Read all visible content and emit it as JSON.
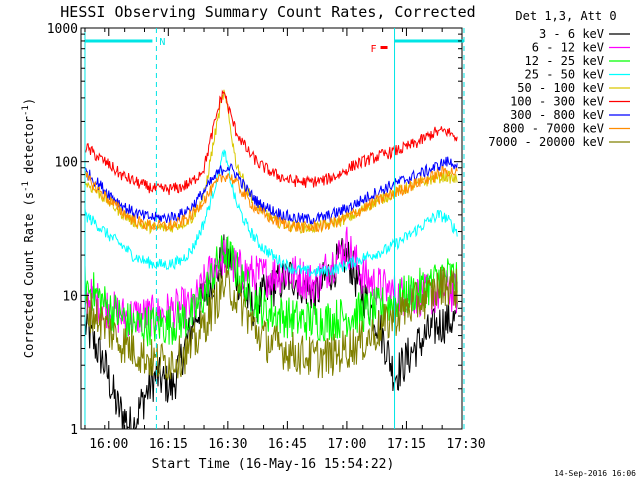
{
  "chart_data": {
    "type": "line",
    "title": "HESSI Observing Summary Count Rates, Corrected",
    "xlabel": "Start Time (16-May-16 15:54:22)",
    "ylabel_main": "Corrected Count Rate (s",
    "ylabel_sup1": "-1",
    "ylabel_mid": " detector",
    "ylabel_sup2": "-1",
    "ylabel_end": ")",
    "xlim_minutes": [
      -1,
      95
    ],
    "xticks": [
      {
        "label": "16:00",
        "minute": 6
      },
      {
        "label": "16:15",
        "minute": 21
      },
      {
        "label": "16:30",
        "minute": 36
      },
      {
        "label": "16:45",
        "minute": 51
      },
      {
        "label": "17:00",
        "minute": 66
      },
      {
        "label": "17:15",
        "minute": 81
      },
      {
        "label": "17:30",
        "minute": 96
      }
    ],
    "ylim": [
      1,
      1000
    ],
    "yscale": "log",
    "yticks": [
      {
        "label": "1",
        "value": 1
      },
      {
        "label": "10",
        "value": 10
      },
      {
        "label": "100",
        "value": 100
      },
      {
        "label": "1000",
        "value": 1000
      }
    ],
    "legend_title": "Det 1,3, Att 0",
    "legend_placement": "right, outside plot",
    "markers": {
      "night_label": "N",
      "flare_label": "F",
      "night_start": 0,
      "night_end": 18,
      "saa_start": 78,
      "saa_end": 95.5,
      "bar_color": "#00e5e5",
      "flare_color": "#ff0000"
    },
    "footer": "14-Sep-2016 16:06",
    "series": [
      {
        "name": "3 - 6 keV",
        "color": "#000000",
        "points": [
          [
            0,
            6
          ],
          [
            3,
            4
          ],
          [
            5,
            3
          ],
          [
            8,
            1.5
          ],
          [
            12,
            1
          ],
          [
            14,
            1.5
          ],
          [
            16,
            2
          ],
          [
            18,
            2.5
          ],
          [
            22,
            2
          ],
          [
            25,
            4
          ],
          [
            28,
            7
          ],
          [
            30,
            10
          ],
          [
            33,
            14
          ],
          [
            35,
            20
          ],
          [
            37,
            18
          ],
          [
            39,
            12
          ],
          [
            42,
            8
          ],
          [
            45,
            10
          ],
          [
            48,
            12
          ],
          [
            52,
            14
          ],
          [
            55,
            12
          ],
          [
            58,
            10
          ],
          [
            61,
            14
          ],
          [
            64,
            18
          ],
          [
            66,
            20
          ],
          [
            68,
            14
          ],
          [
            70,
            10
          ],
          [
            72,
            8
          ],
          [
            74,
            6
          ],
          [
            76,
            4
          ],
          [
            78,
            2.5
          ],
          [
            80,
            3
          ],
          [
            83,
            4
          ],
          [
            86,
            5
          ],
          [
            89,
            6
          ],
          [
            92,
            6.5
          ],
          [
            94,
            6.5
          ]
        ]
      },
      {
        "name": "6 - 12 keV",
        "color": "#ff00ff",
        "points": [
          [
            0,
            10
          ],
          [
            3,
            9
          ],
          [
            6,
            8
          ],
          [
            9,
            7
          ],
          [
            12,
            7
          ],
          [
            15,
            7
          ],
          [
            18,
            7
          ],
          [
            21,
            7.5
          ],
          [
            24,
            8
          ],
          [
            27,
            8
          ],
          [
            30,
            12
          ],
          [
            33,
            18
          ],
          [
            35,
            20
          ],
          [
            37,
            17
          ],
          [
            40,
            15
          ],
          [
            43,
            14
          ],
          [
            46,
            14
          ],
          [
            50,
            15
          ],
          [
            54,
            14
          ],
          [
            58,
            12
          ],
          [
            61,
            16
          ],
          [
            64,
            20
          ],
          [
            66,
            24
          ],
          [
            68,
            18
          ],
          [
            70,
            14
          ],
          [
            73,
            12
          ],
          [
            76,
            11
          ],
          [
            79,
            10
          ],
          [
            82,
            10
          ],
          [
            85,
            10
          ],
          [
            88,
            10
          ],
          [
            91,
            11
          ],
          [
            94,
            10
          ]
        ]
      },
      {
        "name": "12 - 25 keV",
        "color": "#00ff00",
        "points": [
          [
            0,
            12
          ],
          [
            3,
            10
          ],
          [
            6,
            8
          ],
          [
            9,
            7
          ],
          [
            12,
            6
          ],
          [
            15,
            6
          ],
          [
            18,
            6
          ],
          [
            21,
            6
          ],
          [
            24,
            6.5
          ],
          [
            27,
            7
          ],
          [
            30,
            10
          ],
          [
            33,
            16
          ],
          [
            35,
            22
          ],
          [
            37,
            18
          ],
          [
            40,
            12
          ],
          [
            43,
            9
          ],
          [
            46,
            7.5
          ],
          [
            50,
            7
          ],
          [
            54,
            6.5
          ],
          [
            58,
            6.5
          ],
          [
            62,
            6.5
          ],
          [
            66,
            7
          ],
          [
            70,
            7.5
          ],
          [
            74,
            8
          ],
          [
            78,
            9
          ],
          [
            81,
            10
          ],
          [
            84,
            11
          ],
          [
            87,
            12
          ],
          [
            90,
            14
          ],
          [
            92,
            14
          ],
          [
            94,
            13
          ]
        ]
      },
      {
        "name": "25 - 50 keV",
        "color": "#00ffff",
        "points": [
          [
            0,
            40
          ],
          [
            3,
            34
          ],
          [
            6,
            28
          ],
          [
            9,
            24
          ],
          [
            12,
            20
          ],
          [
            15,
            18
          ],
          [
            18,
            17
          ],
          [
            21,
            17
          ],
          [
            24,
            18
          ],
          [
            27,
            22
          ],
          [
            30,
            35
          ],
          [
            32,
            55
          ],
          [
            34,
            90
          ],
          [
            35,
            120
          ],
          [
            36,
            90
          ],
          [
            38,
            50
          ],
          [
            41,
            32
          ],
          [
            44,
            24
          ],
          [
            48,
            19
          ],
          [
            52,
            16
          ],
          [
            56,
            15
          ],
          [
            60,
            15
          ],
          [
            64,
            16
          ],
          [
            68,
            18
          ],
          [
            72,
            20
          ],
          [
            76,
            22
          ],
          [
            80,
            26
          ],
          [
            83,
            30
          ],
          [
            86,
            35
          ],
          [
            89,
            40
          ],
          [
            91,
            38
          ],
          [
            93,
            32
          ],
          [
            94,
            30
          ]
        ]
      },
      {
        "name": "50 - 100 keV",
        "color": "#d9c800",
        "points": [
          [
            0,
            70
          ],
          [
            3,
            60
          ],
          [
            6,
            50
          ],
          [
            9,
            42
          ],
          [
            12,
            36
          ],
          [
            15,
            33
          ],
          [
            18,
            32
          ],
          [
            21,
            32
          ],
          [
            24,
            34
          ],
          [
            27,
            38
          ],
          [
            30,
            55
          ],
          [
            32,
            120
          ],
          [
            34,
            250
          ],
          [
            35,
            330
          ],
          [
            36,
            240
          ],
          [
            38,
            100
          ],
          [
            41,
            60
          ],
          [
            44,
            45
          ],
          [
            48,
            36
          ],
          [
            52,
            33
          ],
          [
            56,
            32
          ],
          [
            60,
            33
          ],
          [
            64,
            36
          ],
          [
            68,
            40
          ],
          [
            72,
            48
          ],
          [
            76,
            55
          ],
          [
            80,
            62
          ],
          [
            84,
            68
          ],
          [
            88,
            75
          ],
          [
            91,
            78
          ],
          [
            94,
            72
          ]
        ]
      },
      {
        "name": "100 - 300 keV",
        "color": "#ff0000",
        "points": [
          [
            0,
            130
          ],
          [
            3,
            110
          ],
          [
            6,
            95
          ],
          [
            9,
            80
          ],
          [
            12,
            72
          ],
          [
            15,
            66
          ],
          [
            18,
            62
          ],
          [
            21,
            62
          ],
          [
            24,
            64
          ],
          [
            27,
            70
          ],
          [
            30,
            90
          ],
          [
            32,
            160
          ],
          [
            34,
            280
          ],
          [
            35,
            340
          ],
          [
            36,
            260
          ],
          [
            38,
            170
          ],
          [
            41,
            120
          ],
          [
            44,
            95
          ],
          [
            48,
            80
          ],
          [
            52,
            72
          ],
          [
            56,
            70
          ],
          [
            60,
            72
          ],
          [
            64,
            80
          ],
          [
            68,
            95
          ],
          [
            72,
            105
          ],
          [
            76,
            115
          ],
          [
            80,
            125
          ],
          [
            84,
            140
          ],
          [
            88,
            165
          ],
          [
            91,
            170
          ],
          [
            94,
            150
          ]
        ]
      },
      {
        "name": "300 - 800 keV",
        "color": "#0000ff",
        "points": [
          [
            0,
            85
          ],
          [
            3,
            70
          ],
          [
            6,
            58
          ],
          [
            9,
            48
          ],
          [
            12,
            42
          ],
          [
            15,
            39
          ],
          [
            18,
            38
          ],
          [
            21,
            38
          ],
          [
            24,
            40
          ],
          [
            27,
            46
          ],
          [
            30,
            60
          ],
          [
            32,
            72
          ],
          [
            34,
            85
          ],
          [
            36,
            92
          ],
          [
            38,
            82
          ],
          [
            41,
            60
          ],
          [
            44,
            48
          ],
          [
            48,
            42
          ],
          [
            52,
            38
          ],
          [
            56,
            37
          ],
          [
            60,
            38
          ],
          [
            64,
            42
          ],
          [
            68,
            48
          ],
          [
            72,
            56
          ],
          [
            76,
            64
          ],
          [
            80,
            72
          ],
          [
            84,
            80
          ],
          [
            88,
            90
          ],
          [
            91,
            100
          ],
          [
            94,
            95
          ]
        ]
      },
      {
        "name": "800 - 7000 keV",
        "color": "#ff8c00",
        "points": [
          [
            0,
            78
          ],
          [
            3,
            63
          ],
          [
            6,
            52
          ],
          [
            9,
            43
          ],
          [
            12,
            37
          ],
          [
            15,
            34
          ],
          [
            18,
            33
          ],
          [
            21,
            33
          ],
          [
            24,
            35
          ],
          [
            27,
            40
          ],
          [
            30,
            52
          ],
          [
            32,
            62
          ],
          [
            34,
            74
          ],
          [
            36,
            80
          ],
          [
            38,
            70
          ],
          [
            41,
            52
          ],
          [
            44,
            42
          ],
          [
            48,
            36
          ],
          [
            52,
            33
          ],
          [
            56,
            32
          ],
          [
            60,
            33
          ],
          [
            64,
            36
          ],
          [
            68,
            41
          ],
          [
            72,
            48
          ],
          [
            76,
            55
          ],
          [
            80,
            62
          ],
          [
            84,
            70
          ],
          [
            88,
            78
          ],
          [
            91,
            86
          ],
          [
            94,
            82
          ]
        ]
      },
      {
        "name": "7000 - 20000 keV",
        "color": "#808000",
        "points": [
          [
            0,
            8
          ],
          [
            3,
            7
          ],
          [
            6,
            5.5
          ],
          [
            9,
            4.5
          ],
          [
            12,
            4
          ],
          [
            15,
            3.5
          ],
          [
            18,
            3.2
          ],
          [
            21,
            3.2
          ],
          [
            24,
            3.5
          ],
          [
            27,
            4
          ],
          [
            30,
            6
          ],
          [
            33,
            9
          ],
          [
            35,
            12
          ],
          [
            37,
            11
          ],
          [
            40,
            8
          ],
          [
            43,
            5.5
          ],
          [
            46,
            4.5
          ],
          [
            50,
            4
          ],
          [
            54,
            3.6
          ],
          [
            58,
            3.4
          ],
          [
            62,
            3.5
          ],
          [
            66,
            4
          ],
          [
            70,
            4.5
          ],
          [
            74,
            5.5
          ],
          [
            78,
            7
          ],
          [
            81,
            8
          ],
          [
            84,
            9
          ],
          [
            87,
            10
          ],
          [
            90,
            12
          ],
          [
            92,
            12
          ],
          [
            94,
            11
          ]
        ]
      }
    ]
  }
}
